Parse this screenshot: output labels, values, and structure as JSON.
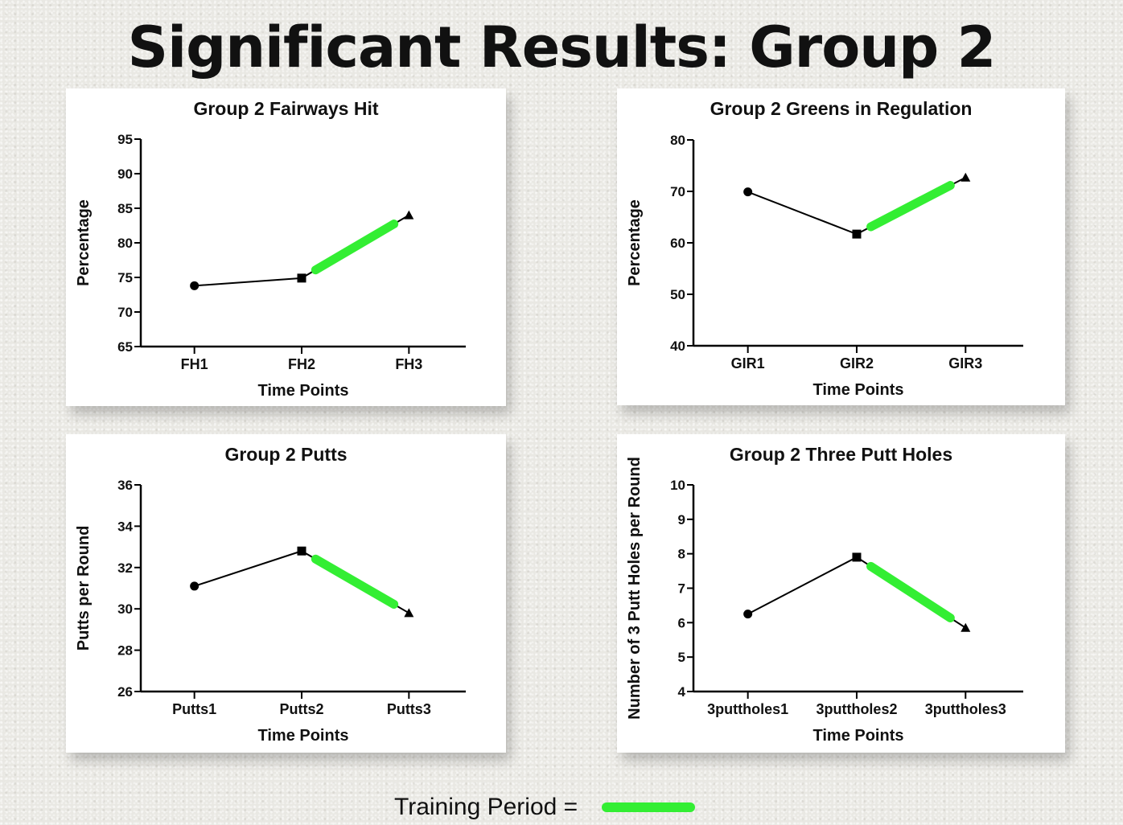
{
  "title": "Significant Results: Group 2",
  "legend": {
    "label": "Training Period =",
    "color": "#33ee33"
  },
  "chart_data": [
    {
      "type": "line",
      "title": "Group 2 Fairways Hit",
      "xlabel": "Time Points",
      "ylabel": "Percentage",
      "categories": [
        "FH1",
        "FH2",
        "FH3"
      ],
      "values": [
        73.8,
        74.9,
        84.0
      ],
      "markers": [
        "circle",
        "square",
        "triangle"
      ],
      "ylim": [
        65,
        95
      ],
      "yticks": [
        65,
        70,
        75,
        80,
        85,
        90,
        95
      ],
      "training_segment": {
        "from": 1,
        "to": 2
      }
    },
    {
      "type": "line",
      "title": "Group 2 Greens in Regulation",
      "xlabel": "Time Points",
      "ylabel": "Percentage",
      "categories": [
        "GIR1",
        "GIR2",
        "GIR3"
      ],
      "values": [
        69.9,
        61.7,
        72.7
      ],
      "markers": [
        "circle",
        "square",
        "triangle"
      ],
      "ylim": [
        40,
        80
      ],
      "yticks": [
        40,
        50,
        60,
        70,
        80
      ],
      "training_segment": {
        "from": 1,
        "to": 2
      }
    },
    {
      "type": "line",
      "title": "Group 2 Putts",
      "xlabel": "Time Points",
      "ylabel": "Putts per Round",
      "categories": [
        "Putts1",
        "Putts2",
        "Putts3"
      ],
      "values": [
        31.1,
        32.8,
        29.8
      ],
      "markers": [
        "circle",
        "square",
        "triangle"
      ],
      "ylim": [
        26,
        36
      ],
      "yticks": [
        26,
        28,
        30,
        32,
        34,
        36
      ],
      "training_segment": {
        "from": 1,
        "to": 2
      }
    },
    {
      "type": "line",
      "title": "Group 2 Three Putt Holes",
      "xlabel": "Time Points",
      "ylabel": "Number of 3 Putt Holes per Round",
      "categories": [
        "3puttholes1",
        "3puttholes2",
        "3puttholes3"
      ],
      "values": [
        6.25,
        7.9,
        5.85
      ],
      "markers": [
        "circle",
        "square",
        "triangle"
      ],
      "ylim": [
        4,
        10
      ],
      "yticks": [
        4,
        5,
        6,
        7,
        8,
        9,
        10
      ],
      "training_segment": {
        "from": 1,
        "to": 2
      }
    }
  ]
}
